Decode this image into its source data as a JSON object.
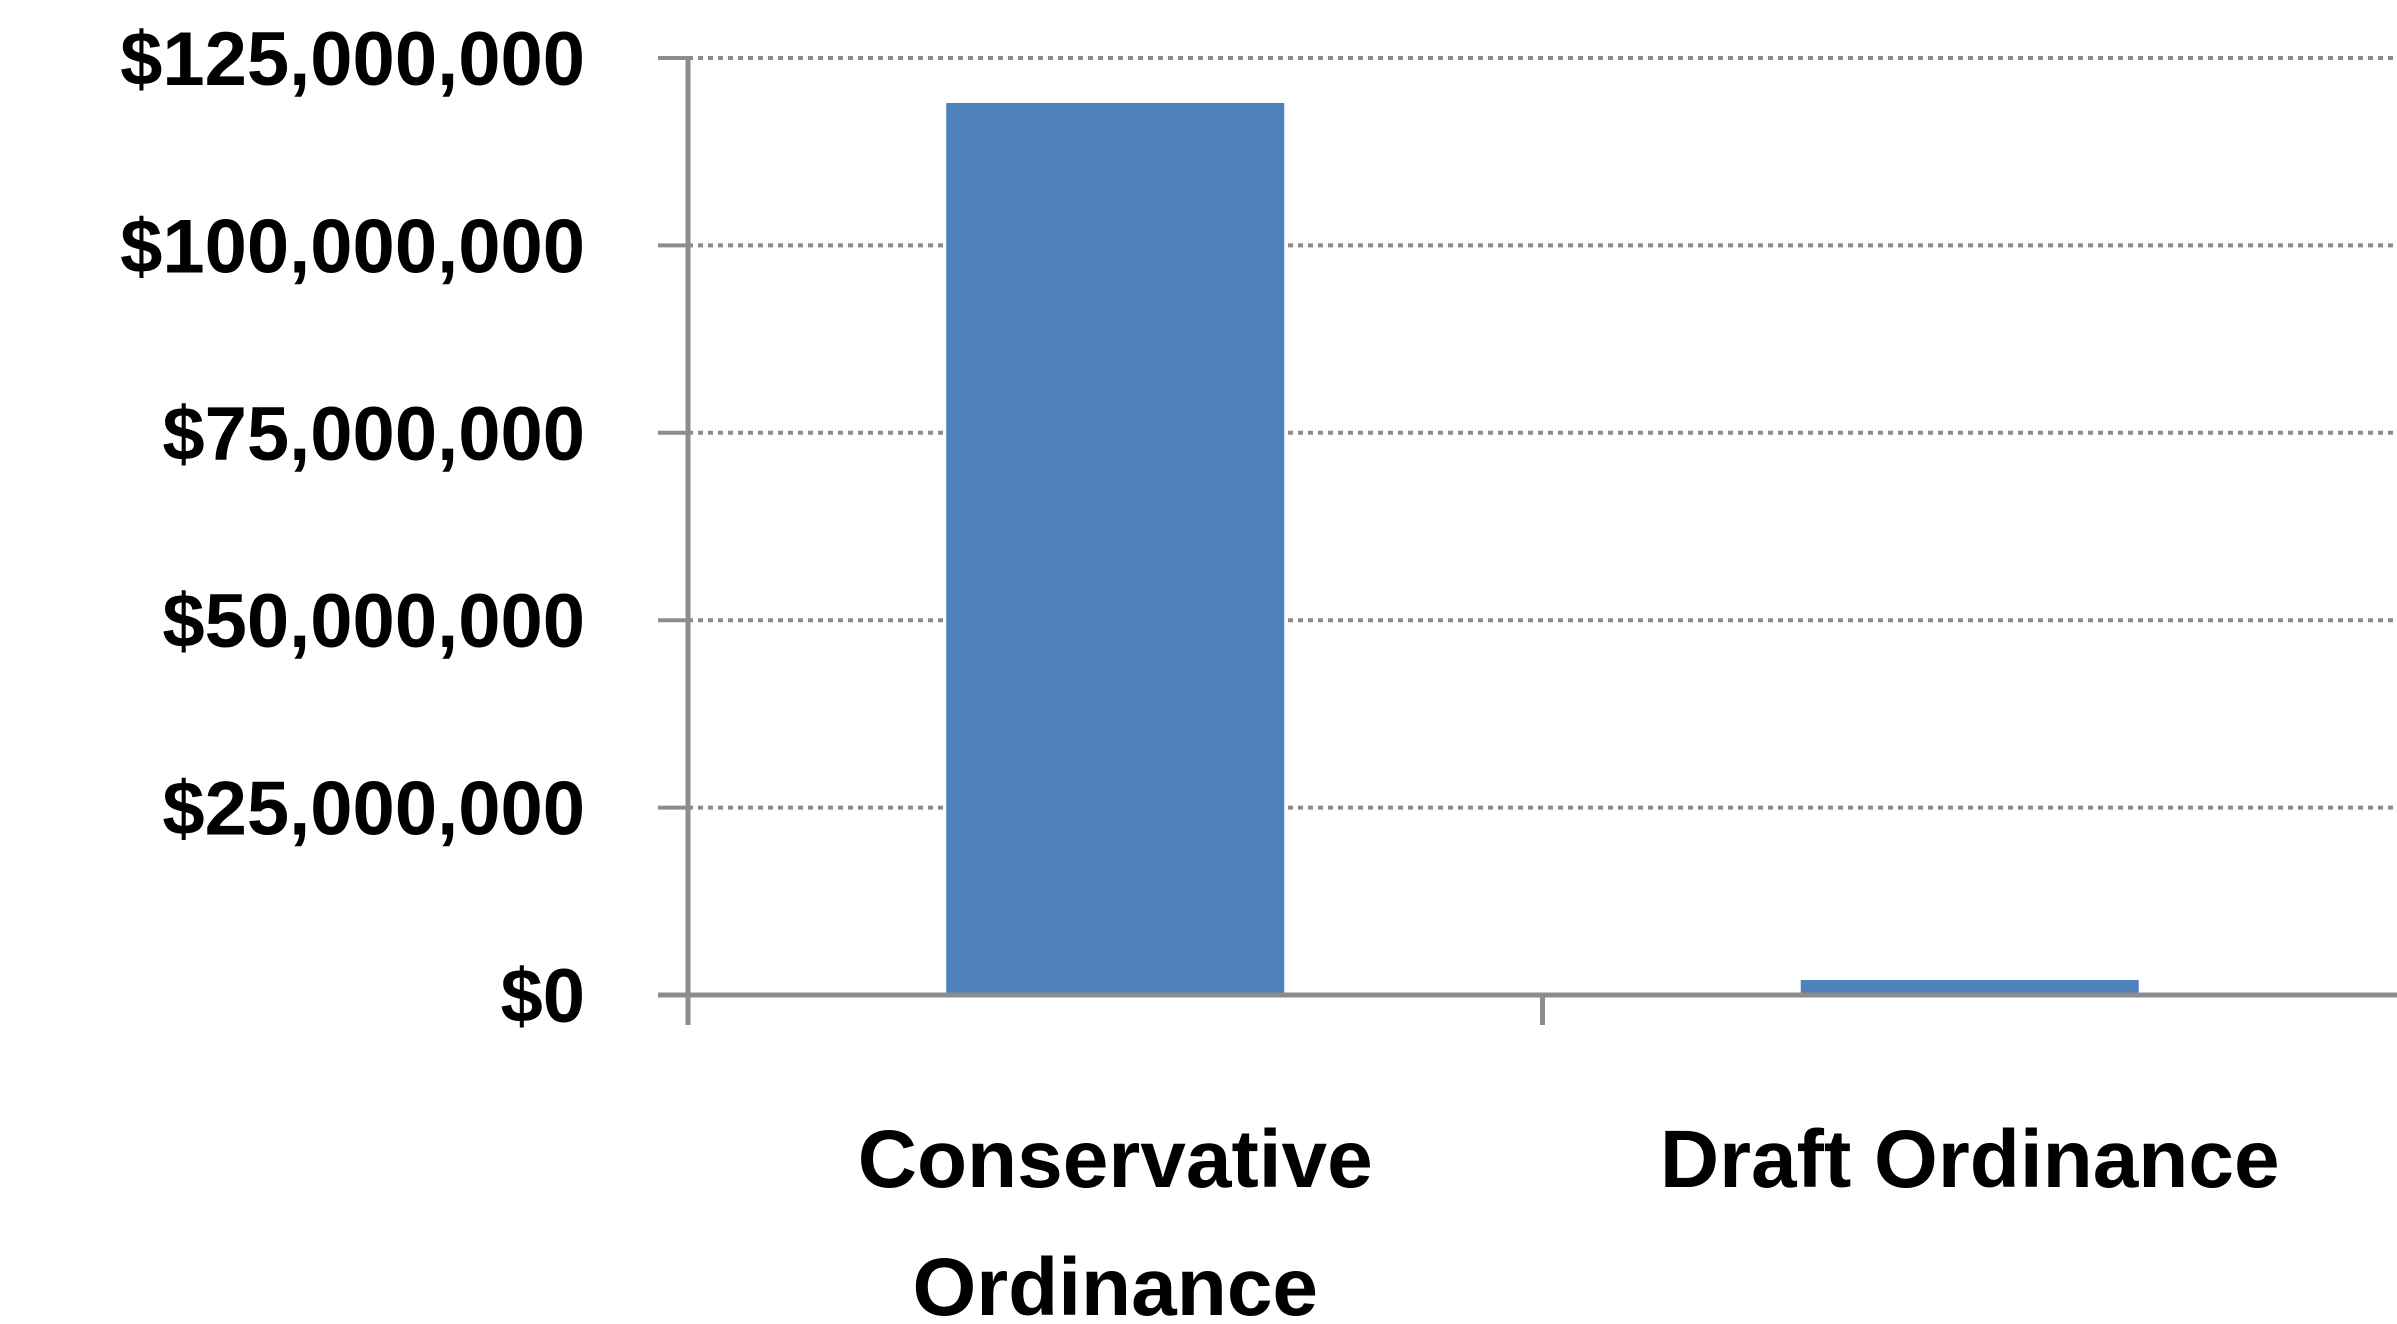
{
  "chart_data": {
    "type": "bar",
    "title": "",
    "xlabel": "",
    "ylabel": "",
    "categories": [
      [
        "Conservative",
        "Ordinance"
      ],
      [
        "Draft Ordinance"
      ]
    ],
    "values": [
      119000000,
      2000000
    ],
    "ylim": [
      0,
      125000000
    ],
    "y_ticks": [
      {
        "value": 0,
        "label": "$0"
      },
      {
        "value": 25000000,
        "label": "$25,000,000"
      },
      {
        "value": 50000000,
        "label": "$50,000,000"
      },
      {
        "value": 75000000,
        "label": "$75,000,000"
      },
      {
        "value": 100000000,
        "label": "$100,000,000"
      },
      {
        "value": 125000000,
        "label": "$125,000,000"
      }
    ],
    "grid": true,
    "grid_style": "dotted",
    "legend": "none",
    "colors": {
      "bar": "#4F81BD",
      "axis": "#8C8C8C",
      "grid": "#8C8C8C",
      "text": "#000000"
    }
  }
}
